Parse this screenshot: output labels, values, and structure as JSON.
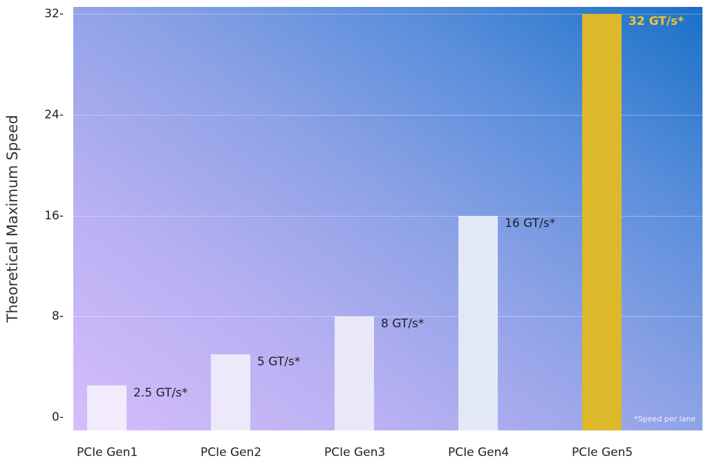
{
  "chart_data": {
    "type": "bar",
    "title": "",
    "xlabel": "",
    "ylabel": "Theoretical Maximum Speed",
    "ylim": [
      0,
      32
    ],
    "yticks": [
      0,
      8,
      16,
      24,
      32
    ],
    "ytick_labels": [
      "0-",
      "8-",
      "16-",
      "24-",
      "32-"
    ],
    "grid": true,
    "categories": [
      "PCIe Gen1",
      "PCIe Gen2",
      "PCIe Gen3",
      "PCIe Gen4",
      "PCIe Gen5"
    ],
    "values": [
      2.5,
      5,
      8,
      16,
      32
    ],
    "value_labels": [
      "2.5 GT/s*",
      "5 GT/s*",
      "8 GT/s*",
      "16 GT/s*",
      "32 GT/s*"
    ],
    "bar_colors": [
      "#f1ebfd",
      "#ede9fb",
      "#e9e8f9",
      "#e3e8f7",
      "#dcb82a"
    ],
    "label_colors": [
      "#1e1e2a",
      "#1e1e2a",
      "#1e1e2a",
      "#1e1e2a",
      "#f2c42a"
    ],
    "annotations": [
      "*Speed per lane"
    ],
    "legend": null
  },
  "axis": {
    "ylabel": "Theoretical Maximum Speed"
  },
  "footnote": "*Speed per lane"
}
